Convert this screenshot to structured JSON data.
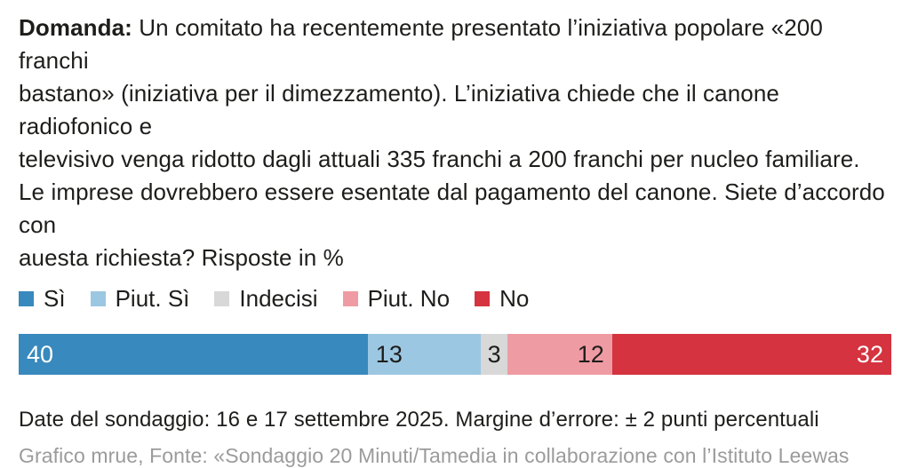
{
  "question": {
    "label": "Domanda:",
    "line1": "Un comitato ha recentemente presentato l’iniziativa popolare «200 franchi",
    "line2": "bastano» (iniziativa per il dimezzamento). L’iniziativa chiede che il canone radiofonico e",
    "line3": "televisivo venga ridotto dagli attuali 335 franchi a 200 franchi per nucleo familiare.",
    "line4": "Le imprese dovrebbero essere esentate dal pagamento del canone. Siete d’accordo con",
    "line5": "auesta richiesta? Risposte in %"
  },
  "chart_data": {
    "type": "bar",
    "orientation": "horizontal_stacked",
    "unit": "%",
    "categories": [
      "Sì",
      "Piut. Sì",
      "Indecisi",
      "Piut. No",
      "No"
    ],
    "values": [
      40,
      13,
      3,
      12,
      32
    ],
    "colors": [
      "#3889bd",
      "#9cc7e2",
      "#d8d8d8",
      "#ef9ba3",
      "#d4333f"
    ],
    "label_colors": [
      "#ffffff",
      "#1d1d1b",
      "#1d1d1b",
      "#1d1d1b",
      "#ffffff"
    ],
    "label_align": [
      "left",
      "left",
      "center",
      "right",
      "right"
    ],
    "xlim": [
      0,
      100
    ],
    "grid": false,
    "legend_position": "top"
  },
  "footer": {
    "survey_info": "Date del sondaggio: 16 e 17 settembre 2025. Margine d’errore: ± 2 punti percentuali",
    "source": "Grafico mrue, Fonte: «Sondaggio 20 Minuti/Tamedia in collaborazione con l’Istituto Leewas",
    "source_color": "#9b9b9b",
    "text_color": "#1d1d1b"
  }
}
